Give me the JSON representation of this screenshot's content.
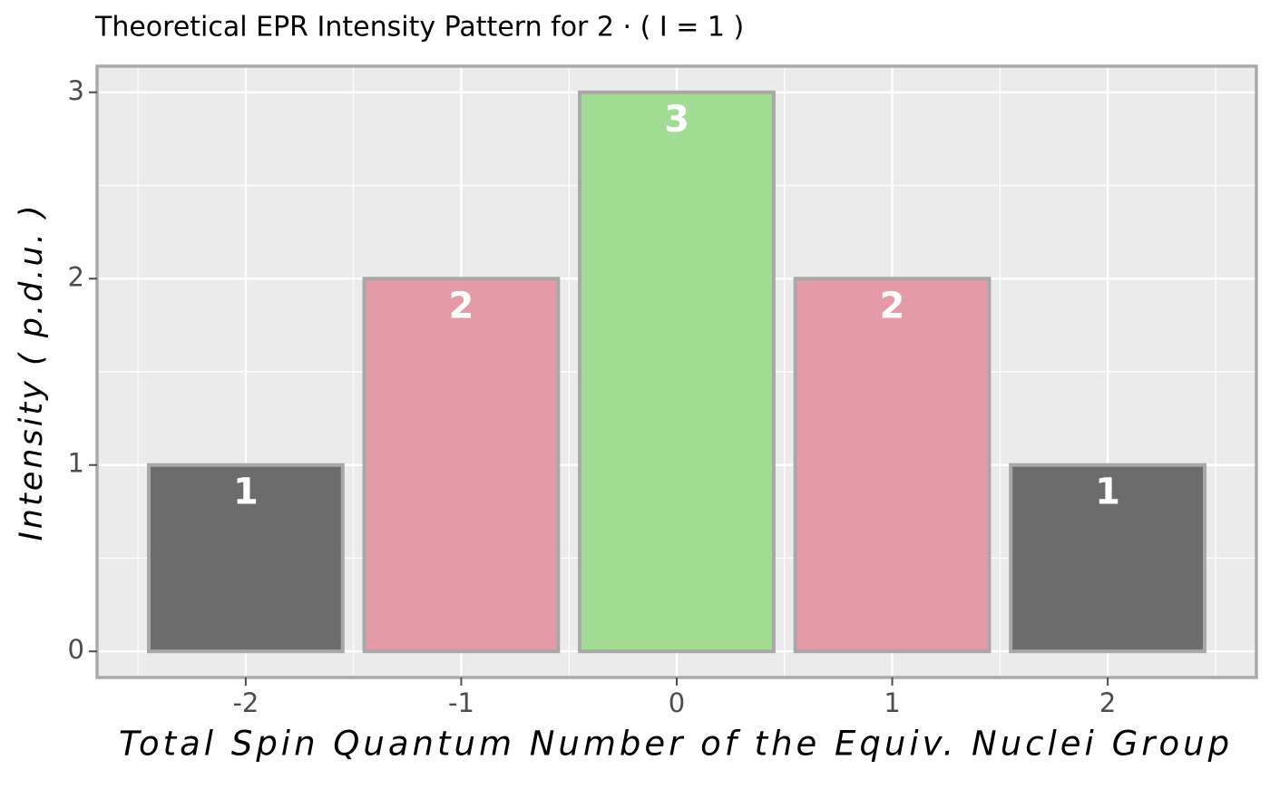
{
  "chart_data": {
    "type": "bar",
    "title": "Theoretical EPR Intensity Pattern for  2 · ( I = 1 )",
    "x_label": "Total Spin Quantum Number of the Equiv. Nuclei Group",
    "y_label": "Intensity ( p.d.u. )",
    "x": [
      -2,
      -1,
      0,
      1,
      2
    ],
    "values": [
      1,
      2,
      3,
      2,
      1
    ],
    "colors": [
      "#6c6c6c",
      "#e49aa7",
      "#a0dd93",
      "#e49aa7",
      "#6c6c6c"
    ],
    "xlim": [
      -2.69,
      2.69
    ],
    "xticks": [
      -2,
      -1,
      0,
      1,
      2
    ],
    "ylim": [
      -0.14,
      3.14
    ],
    "yticks": [
      0,
      1,
      2,
      3
    ],
    "grid": true
  }
}
